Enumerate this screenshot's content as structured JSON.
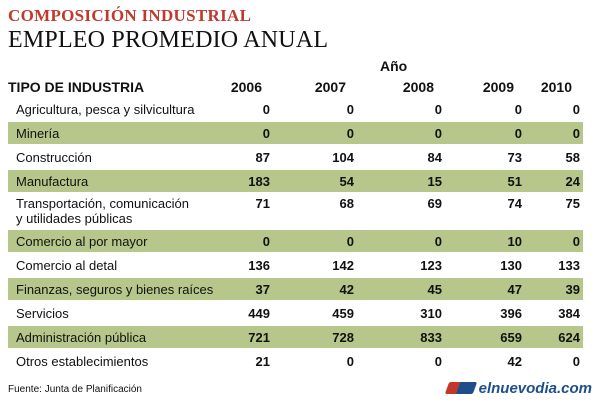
{
  "header": {
    "kicker": "COMPOSICIÓN INDUSTRIAL",
    "title": "EMPLEO PROMEDIO ANUAL"
  },
  "chart_data": {
    "type": "table",
    "column_group_label": "Año",
    "category_header": "TIPO DE INDUSTRIA",
    "columns": [
      "2006",
      "2007",
      "2008",
      "2009",
      "2010"
    ],
    "rows": [
      {
        "label": [
          "Agricultura, pesca y silvicultura"
        ],
        "values": [
          0,
          0,
          0,
          0,
          0
        ],
        "shaded": false
      },
      {
        "label": [
          "Minería"
        ],
        "values": [
          0,
          0,
          0,
          0,
          0
        ],
        "shaded": true
      },
      {
        "label": [
          "Construcción"
        ],
        "values": [
          87,
          104,
          84,
          73,
          58
        ],
        "shaded": false
      },
      {
        "label": [
          "Manufactura"
        ],
        "values": [
          183,
          54,
          15,
          51,
          24
        ],
        "shaded": true
      },
      {
        "label": [
          "Transportación, comunicación",
          "y utilidades públicas"
        ],
        "values": [
          71,
          68,
          69,
          74,
          75
        ],
        "shaded": false
      },
      {
        "label": [
          "Comercio al por mayor"
        ],
        "values": [
          0,
          0,
          0,
          10,
          0
        ],
        "shaded": true
      },
      {
        "label": [
          "Comercio al detal"
        ],
        "values": [
          136,
          142,
          123,
          130,
          133
        ],
        "shaded": false
      },
      {
        "label": [
          "Finanzas, seguros y bienes raíces"
        ],
        "values": [
          37,
          42,
          45,
          47,
          39
        ],
        "shaded": true
      },
      {
        "label": [
          "Servicios"
        ],
        "values": [
          449,
          459,
          310,
          396,
          384
        ],
        "shaded": false
      },
      {
        "label": [
          "Administración pública"
        ],
        "values": [
          721,
          728,
          833,
          659,
          624
        ],
        "shaded": true
      },
      {
        "label": [
          "Otros establecimientos"
        ],
        "values": [
          21,
          0,
          0,
          42,
          0
        ],
        "shaded": false
      }
    ],
    "colors": {
      "shaded_row": "#b7c78b",
      "kicker": "#c0392b"
    }
  },
  "footer": {
    "source": "Fuente: Junta de Planificación",
    "brand": "elnuevodia.com"
  }
}
